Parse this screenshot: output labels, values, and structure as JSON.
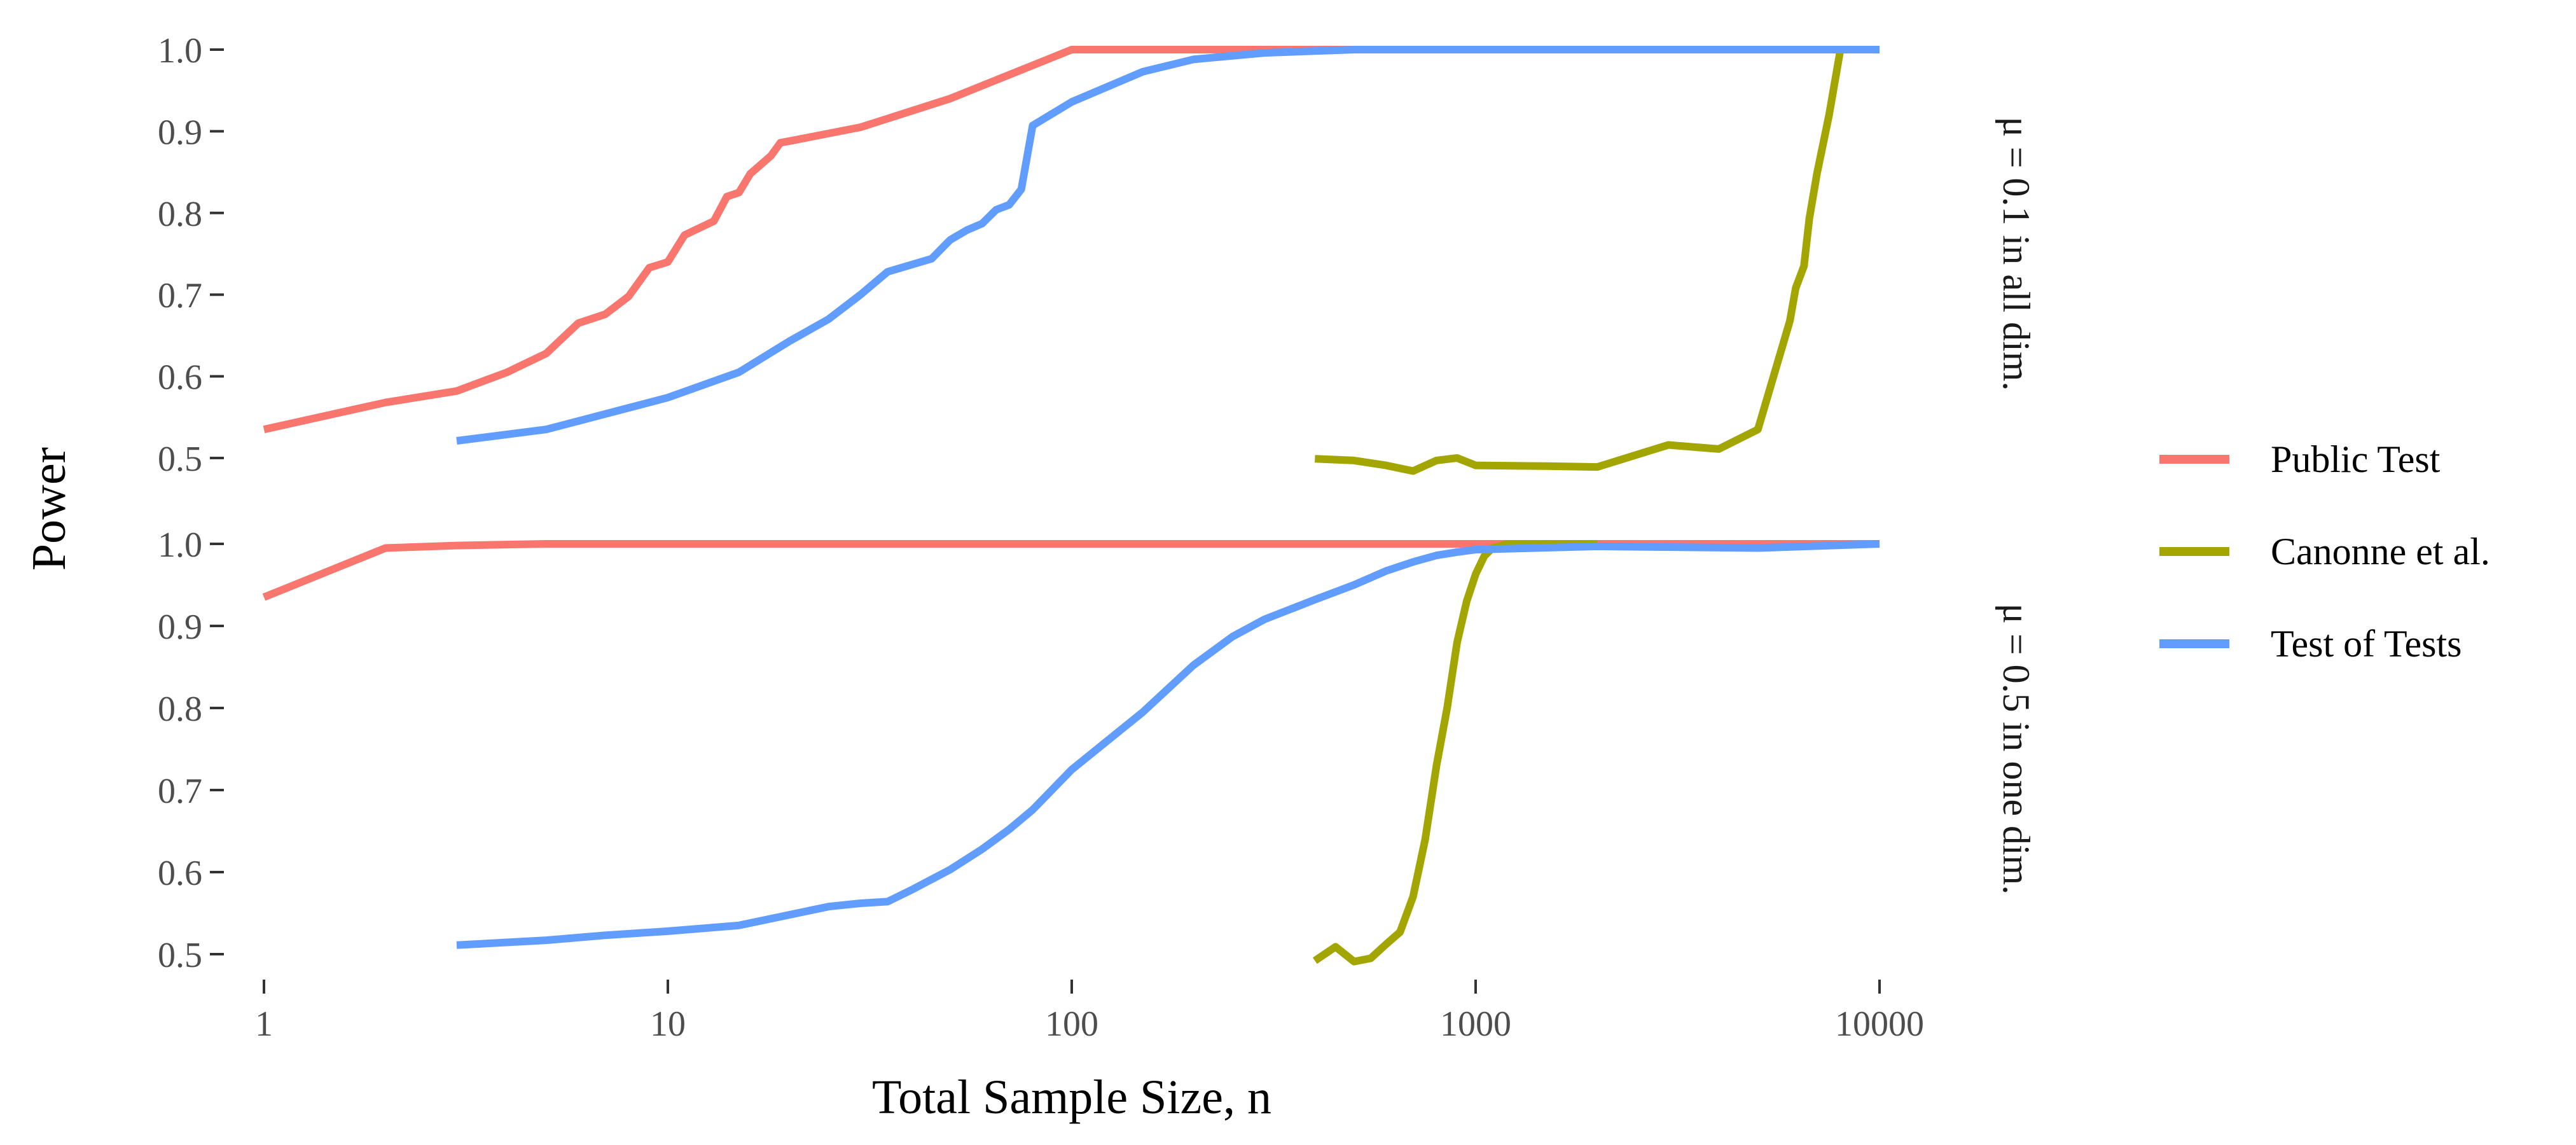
{
  "chart_data": {
    "type": "line",
    "xlabel": "Total Sample Size, n",
    "ylabel": "Power",
    "x_scale": "log10",
    "x_ticks": [
      1,
      10,
      100,
      1000,
      10000
    ],
    "x_tick_labels": [
      "1",
      "10",
      "100",
      "1000",
      "10000"
    ],
    "xlim": [
      1,
      10000
    ],
    "y_ticks": [
      0.5,
      0.6,
      0.7,
      0.8,
      0.9,
      1.0
    ],
    "y_tick_labels": [
      "0.5",
      "0.6",
      "0.7",
      "0.8",
      "0.9",
      "1.0"
    ],
    "ylim": [
      0.5,
      1.0
    ],
    "grid": false,
    "legend": {
      "position": "right",
      "entries": [
        {
          "name": "Public Test",
          "color": "#F8766D"
        },
        {
          "name": "Canonne et al.",
          "color": "#A3A500"
        },
        {
          "name": "Test of Tests",
          "color": "#619CFF"
        }
      ]
    },
    "panels": [
      {
        "strip": "μ = 0.1 in all dim.",
        "series": [
          {
            "name": "Public Test",
            "color": "#F8766D",
            "x": [
              1,
              2,
              3,
              4,
              5,
              6,
              7,
              8,
              9,
              10,
              11,
              13,
              14,
              15,
              16,
              18,
              19,
              20,
              30,
              50,
              100,
              200,
              500,
              1000,
              2000,
              5000,
              10000
            ],
            "y": [
              0.535,
              0.568,
              0.582,
              0.605,
              0.628,
              0.665,
              0.676,
              0.698,
              0.733,
              0.74,
              0.773,
              0.79,
              0.82,
              0.825,
              0.848,
              0.87,
              0.886,
              0.888,
              0.905,
              0.94,
              1.0,
              1.0,
              1.0,
              1.0,
              1.0,
              1.0,
              1.0
            ]
          },
          {
            "name": "Canonne et al.",
            "color": "#A3A500",
            "x": [
              400,
              450,
              500,
              600,
              700,
              800,
              900,
              1000,
              1500,
              2000,
              3000,
              4000,
              5000,
              6000,
              6200,
              6500,
              6700,
              7000,
              7500,
              8000,
              9000,
              10000
            ],
            "y": [
              0.499,
              0.498,
              0.497,
              0.491,
              0.484,
              0.497,
              0.5,
              0.491,
              0.49,
              0.489,
              0.516,
              0.511,
              0.535,
              0.668,
              0.708,
              0.735,
              0.793,
              0.848,
              0.92,
              1.0,
              1.0,
              1.0
            ]
          },
          {
            "name": "Test of Tests",
            "color": "#619CFF",
            "x": [
              3,
              5,
              10,
              15,
              20,
              25,
              30,
              35,
              45,
              50,
              55,
              60,
              65,
              70,
              75,
              80,
              100,
              150,
              200,
              300,
              500,
              1000,
              2000,
              5000,
              10000
            ],
            "y": [
              0.521,
              0.535,
              0.574,
              0.605,
              0.643,
              0.67,
              0.7,
              0.728,
              0.744,
              0.767,
              0.779,
              0.787,
              0.804,
              0.81,
              0.829,
              0.907,
              0.936,
              0.973,
              0.988,
              0.996,
              1.0,
              1.0,
              1.0,
              1.0,
              1.0
            ]
          }
        ]
      },
      {
        "strip": "μ = 0.5 in one dim.",
        "series": [
          {
            "name": "Public Test",
            "color": "#F8766D",
            "x": [
              1,
              2,
              3,
              5,
              10,
              100,
              1000,
              10000
            ],
            "y": [
              0.935,
              0.995,
              0.998,
              1.0,
              1.0,
              1.0,
              1.0,
              1.0
            ]
          },
          {
            "name": "Canonne et al.",
            "color": "#A3A500",
            "x": [
              400,
              450,
              500,
              550,
              600,
              650,
              700,
              750,
              800,
              850,
              900,
              950,
              1000,
              1050,
              1100,
              1200,
              1500,
              2000
            ],
            "y": [
              0.492,
              0.509,
              0.491,
              0.495,
              0.512,
              0.527,
              0.57,
              0.64,
              0.73,
              0.8,
              0.88,
              0.93,
              0.963,
              0.985,
              0.995,
              1.0,
              1.0,
              1.0
            ]
          },
          {
            "name": "Test of Tests",
            "color": "#619CFF",
            "x": [
              3,
              5,
              7,
              10,
              15,
              20,
              25,
              30,
              35,
              40,
              50,
              60,
              70,
              80,
              100,
              150,
              200,
              250,
              300,
              400,
              500,
              600,
              700,
              800,
              900,
              1000,
              2000,
              5000,
              10000
            ],
            "y": [
              0.511,
              0.517,
              0.523,
              0.528,
              0.535,
              0.548,
              0.558,
              0.562,
              0.564,
              0.578,
              0.603,
              0.628,
              0.652,
              0.676,
              0.725,
              0.795,
              0.852,
              0.887,
              0.908,
              0.932,
              0.95,
              0.967,
              0.978,
              0.986,
              0.99,
              0.993,
              0.997,
              0.995,
              1.0
            ]
          }
        ]
      }
    ]
  }
}
